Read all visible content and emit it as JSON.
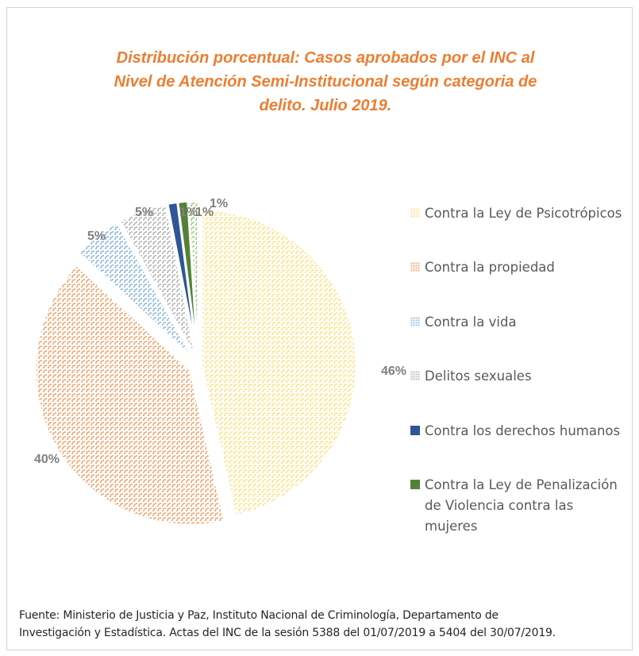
{
  "chart_data": {
    "type": "pie",
    "title": "Distribución porcentual: Casos aprobados por el INC al Nivel de Atención Semi-Institucional según categoria de delito. Julio 2019.",
    "title_lines": [
      "Distribución porcentual: Casos aprobados por el INC al",
      "Nivel de Atención Semi-Institucional según categoria de",
      "delito. Julio 2019."
    ],
    "legend_position": "right",
    "slices": [
      {
        "label": "Contra la Ley de Psicotrópicos",
        "value": 46,
        "data_label": "46%",
        "color": "#ffe699",
        "pattern": "dotted"
      },
      {
        "label": "Contra la propiedad",
        "value": 40,
        "data_label": "40%",
        "color": "#f4b183",
        "pattern": "dotted"
      },
      {
        "label": "Contra la vida",
        "value": 5,
        "data_label": "5%",
        "color": "#9dc3e6",
        "pattern": "dotted"
      },
      {
        "label": "Delitos sexuales",
        "value": 5,
        "data_label": "5%",
        "color": "#bfbfbf",
        "pattern": "dotted"
      },
      {
        "label": "Contra los derechos humanos",
        "value": 1,
        "data_label": "1%",
        "color": "#2f5597",
        "pattern": "solid"
      },
      {
        "label": "Contra la Ley de Penalización de Violencia contra las mujeres",
        "value": 1,
        "data_label": "1%",
        "color": "#548235",
        "pattern": "solid"
      },
      {
        "label": "",
        "value": 1,
        "data_label": "1%",
        "color": "#a9d18e",
        "pattern": "dotted"
      }
    ]
  },
  "legend_lines": [
    [
      "Contra la Ley de Psicotrópicos"
    ],
    [
      "Contra la propiedad"
    ],
    [
      "Contra la vida"
    ],
    [
      "Delitos sexuales"
    ],
    [
      "Contra los derechos humanos"
    ],
    [
      "Contra la Ley de Penalización",
      "de Violencia contra las",
      "mujeres"
    ]
  ],
  "footnote": {
    "line1": "Fuente: Ministerio de Justicia y Paz, Instituto Nacional de Criminología, Departamento de",
    "line2": "Investigación y Estadística. Actas del INC de la sesión 5388 del 01/07/2019 a 5404 del 30/07/2019."
  }
}
